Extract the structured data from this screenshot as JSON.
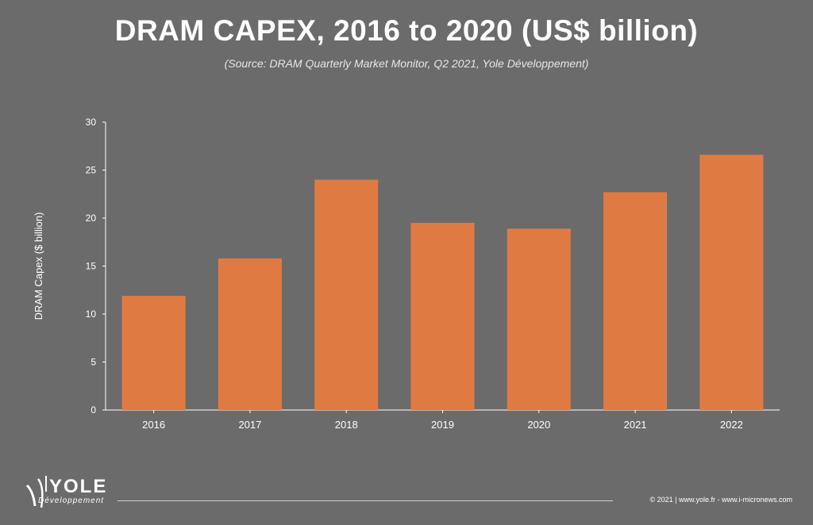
{
  "header": {
    "title": "DRAM CAPEX, 2016 to 2020 (US$ billion)",
    "subtitle": "(Source: DRAM Quarterly Market Monitor, Q2 2021, Yole Développement)"
  },
  "chart_data": {
    "type": "bar",
    "title": "DRAM CAPEX, 2016 to 2020 (US$ billion)",
    "subtitle": "(Source: DRAM Quarterly Market Monitor, Q2 2021, Yole Développement)",
    "xlabel": "",
    "ylabel": "DRAM Capex ($ billion)",
    "categories": [
      "2016",
      "2017",
      "2018",
      "2019",
      "2020",
      "2021",
      "2022"
    ],
    "values": [
      11.9,
      15.8,
      24.0,
      19.5,
      18.9,
      22.7,
      26.6
    ],
    "ylim": [
      0,
      30
    ],
    "yticks": [
      0,
      5,
      10,
      15,
      20,
      25,
      30
    ],
    "grid": false,
    "bar_color": "#e07a43"
  },
  "footer": {
    "brand": "YOLE",
    "brand_sub": "Développement",
    "copyright": "© 2021 | www.yole.fr - www.i-micronews.com"
  },
  "colors": {
    "background": "#6b6b6b",
    "bar": "#e07a43",
    "axis": "#ffffff"
  }
}
